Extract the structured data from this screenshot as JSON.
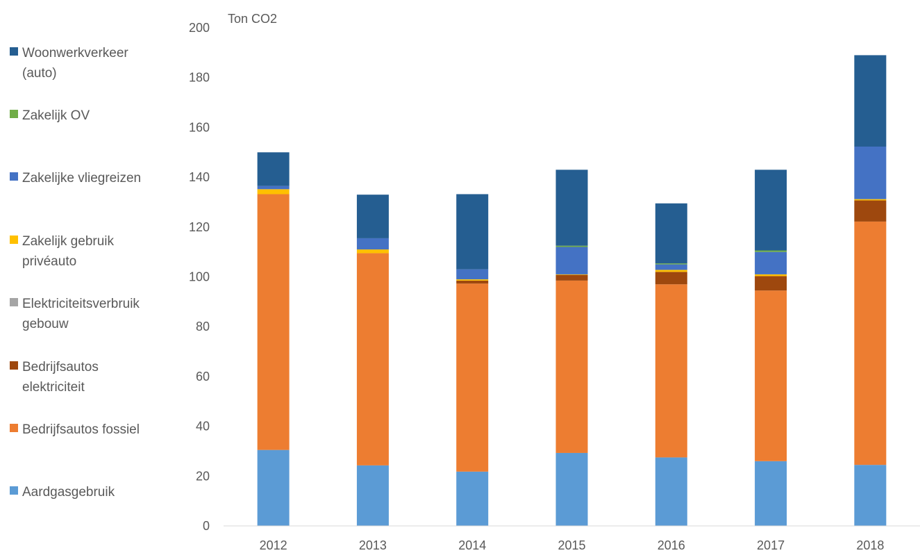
{
  "chart_data": {
    "type": "bar",
    "stacked": true,
    "ylabel": "Ton CO2",
    "ylim": [
      0,
      200
    ],
    "yticks": [
      0,
      20,
      40,
      60,
      80,
      100,
      120,
      140,
      160,
      180,
      200
    ],
    "grid": false,
    "legend_position": "left",
    "categories": [
      "2012",
      "2013",
      "2014",
      "2015",
      "2016",
      "2017",
      "2018"
    ],
    "series": [
      {
        "name": "Aardgasgebruik",
        "color": "#5b9bd5",
        "values": [
          30.5,
          24.3,
          21.8,
          29.3,
          27.5,
          26.0,
          24.5
        ]
      },
      {
        "name": "Bedrijfsautos fossiel",
        "color": "#ed7d31",
        "values": [
          102.7,
          85.2,
          75.5,
          69.2,
          69.5,
          68.5,
          97.7
        ]
      },
      {
        "name": "Bedrijfsautos elektriciteit",
        "color": "#9e480e",
        "values": [
          0,
          0,
          1.2,
          2.3,
          5.0,
          5.8,
          8.5
        ]
      },
      {
        "name": "Elektriciteitsverbruik gebouw",
        "color": "#a5a5a5",
        "values": [
          0,
          0,
          0,
          0,
          0,
          0,
          0
        ]
      },
      {
        "name": "Zakelijk gebruik privéauto",
        "color": "#ffc000",
        "values": [
          2.0,
          1.5,
          0.5,
          0.2,
          0.8,
          0.7,
          0.5
        ]
      },
      {
        "name": "Zakelijke vliegreizen",
        "color": "#4472c4",
        "values": [
          1.3,
          4.5,
          4.0,
          11.0,
          2.2,
          9.0,
          21.1
        ]
      },
      {
        "name": "Zakelijk OV",
        "color": "#70ad47",
        "values": [
          0,
          0,
          0,
          0.5,
          0.4,
          0.6,
          0
        ]
      },
      {
        "name": "Woonwerkverkeer (auto)",
        "color": "#255e91",
        "values": [
          13.5,
          17.5,
          30.2,
          30.5,
          24.1,
          32.4,
          36.7
        ]
      }
    ]
  },
  "legend": [
    {
      "label": "Woonwerkverkeer\n(auto)",
      "color": "#255e91",
      "icon": "square-swatch"
    },
    {
      "label": "Zakelijk OV",
      "color": "#70ad47",
      "icon": "square-swatch"
    },
    {
      "label": "Zakelijke vliegreizen",
      "color": "#4472c4",
      "icon": "square-swatch"
    },
    {
      "label": "Zakelijk gebruik\nprivéauto",
      "color": "#ffc000",
      "icon": "square-swatch"
    },
    {
      "label": "Elektriciteitsverbruik\ngebouw",
      "color": "#a5a5a5",
      "icon": "square-swatch"
    },
    {
      "label": "Bedrijfsautos\nelektriciteit",
      "color": "#9e480e",
      "icon": "square-swatch"
    },
    {
      "label": "Bedrijfsautos fossiel",
      "color": "#ed7d31",
      "icon": "square-swatch"
    },
    {
      "label": "Aardgasgebruik",
      "color": "#5b9bd5",
      "icon": "square-swatch"
    }
  ]
}
